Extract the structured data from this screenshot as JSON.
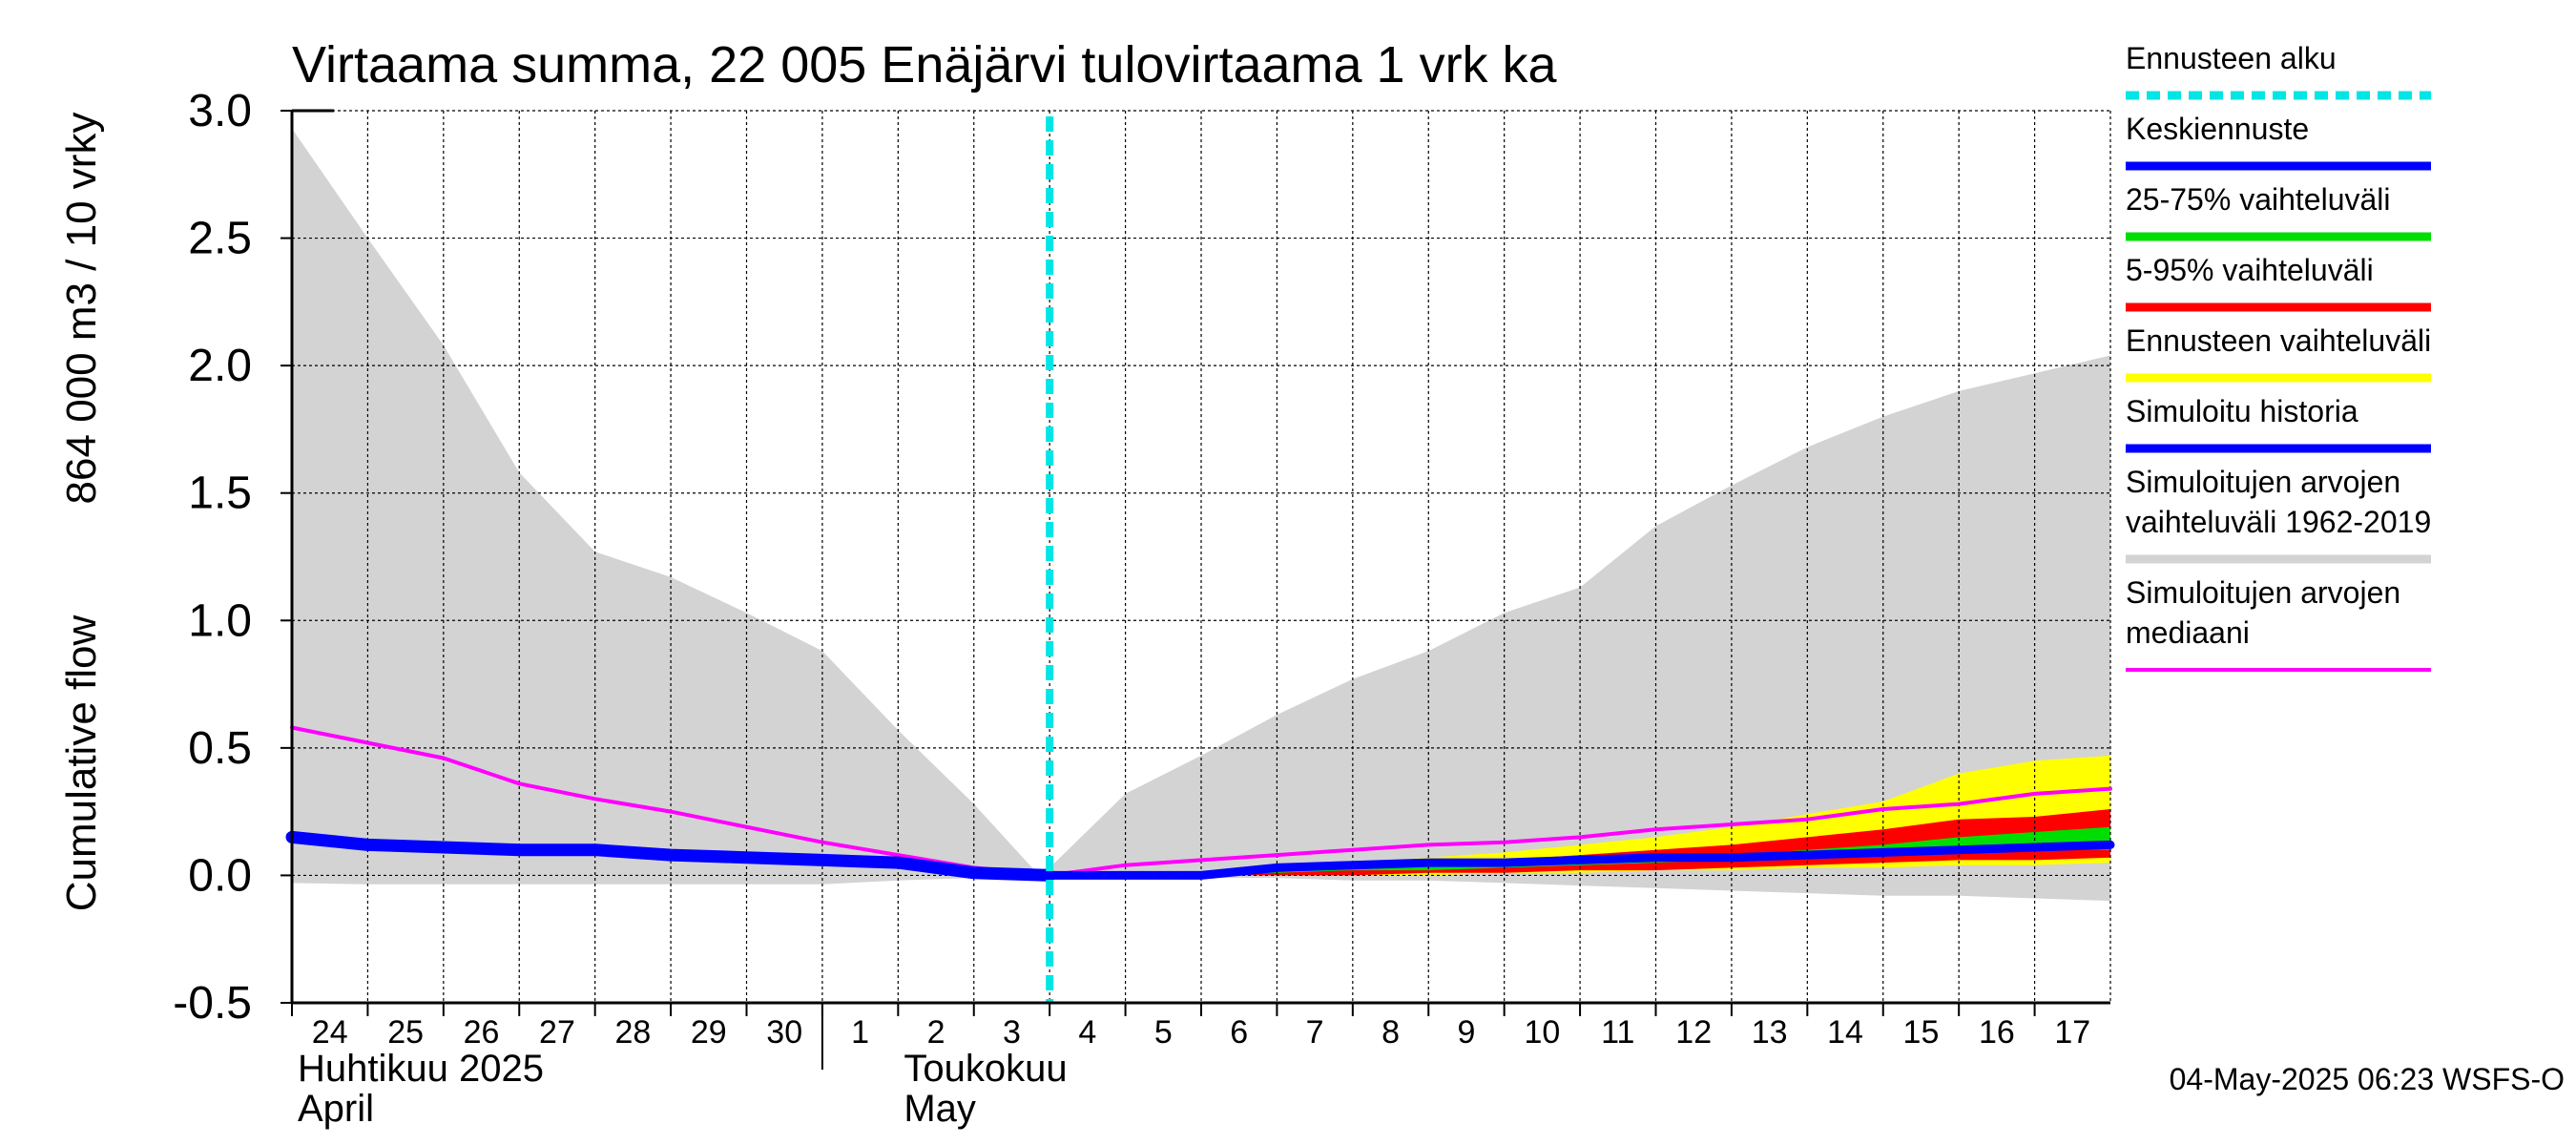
{
  "chart_data": {
    "type": "area",
    "title": "Virtaama summa, 22 005 Enäjärvi tulovirtaama 1 vrk ka",
    "ylabel_line1": "Cumulative flow",
    "ylabel_line2": "864 000 m3 / 10 vrky",
    "ylim": [
      -0.5,
      3.0
    ],
    "yticks": [
      -0.5,
      0.0,
      0.5,
      1.0,
      1.5,
      2.0,
      2.5,
      3.0
    ],
    "ytick_labels": [
      "-0.5",
      "0.0",
      "0.5",
      "1.0",
      "1.5",
      "2.0",
      "2.5",
      "3.0"
    ],
    "xlim": [
      0,
      24
    ],
    "x_tick_labels": [
      "24",
      "25",
      "26",
      "27",
      "28",
      "29",
      "30",
      "1",
      "2",
      "3",
      "4",
      "5",
      "6",
      "7",
      "8",
      "9",
      "10",
      "11",
      "12",
      "13",
      "14",
      "15",
      "16",
      "17"
    ],
    "month_labels": [
      {
        "line1": "Huhtikuu  2025",
        "line2": "April",
        "x": 0
      },
      {
        "line1": "Toukokuu",
        "line2": "May",
        "x": 8
      }
    ],
    "month_separator_x": 7,
    "forecast_start_x": 10,
    "grid": true,
    "series": [
      {
        "name": "Simuloitujen arvojen vaihteluväli 1962-2019",
        "kind": "band",
        "color": "#d3d3d3",
        "x": [
          0,
          1,
          2,
          3,
          4,
          5,
          6,
          7,
          8,
          9,
          9.8,
          10,
          11,
          12,
          13,
          14,
          15,
          16,
          17,
          18,
          19,
          20,
          21,
          22,
          23,
          24
        ],
        "upper": [
          2.93,
          2.5,
          2.08,
          1.58,
          1.27,
          1.17,
          1.03,
          0.88,
          0.57,
          0.28,
          0.02,
          0.03,
          0.32,
          0.47,
          0.63,
          0.77,
          0.88,
          1.03,
          1.13,
          1.37,
          1.53,
          1.68,
          1.8,
          1.9,
          1.97,
          2.04
        ],
        "lower": [
          -0.03,
          -0.035,
          -0.035,
          -0.035,
          -0.035,
          -0.035,
          -0.035,
          -0.035,
          -0.02,
          -0.01,
          0.0,
          0.0,
          -0.005,
          -0.01,
          -0.01,
          -0.02,
          -0.02,
          -0.03,
          -0.04,
          -0.05,
          -0.06,
          -0.07,
          -0.08,
          -0.08,
          -0.09,
          -0.1
        ]
      },
      {
        "name": "Ennusteen vaihteluväli",
        "kind": "band",
        "color": "#ffff00",
        "x": [
          10,
          12,
          13,
          14,
          15,
          16,
          17,
          18,
          19,
          20,
          21,
          22,
          23,
          24
        ],
        "upper": [
          0.0,
          0.01,
          0.03,
          0.05,
          0.07,
          0.09,
          0.12,
          0.15,
          0.19,
          0.24,
          0.29,
          0.4,
          0.45,
          0.47
        ],
        "lower": [
          0.0,
          0.0,
          0.0,
          0.0,
          0.0,
          0.01,
          0.01,
          0.02,
          0.02,
          0.03,
          0.03,
          0.04,
          0.04,
          0.05
        ]
      },
      {
        "name": "5-95% vaihteluväli",
        "kind": "band",
        "color": "#ff0000",
        "x": [
          10,
          12,
          13,
          14,
          15,
          16,
          17,
          18,
          19,
          20,
          21,
          22,
          23,
          24
        ],
        "upper": [
          0.0,
          0.01,
          0.02,
          0.04,
          0.05,
          0.06,
          0.08,
          0.1,
          0.12,
          0.15,
          0.18,
          0.22,
          0.23,
          0.26
        ],
        "lower": [
          0.0,
          0.0,
          0.0,
          0.0,
          0.01,
          0.01,
          0.02,
          0.02,
          0.03,
          0.04,
          0.05,
          0.06,
          0.06,
          0.07
        ]
      },
      {
        "name": "25-75% vaihteluväli",
        "kind": "band",
        "color": "#00dd00",
        "x": [
          10,
          12,
          13,
          14,
          15,
          16,
          17,
          18,
          19,
          20,
          21,
          22,
          23,
          24
        ],
        "upper": [
          0.0,
          0.01,
          0.02,
          0.03,
          0.04,
          0.05,
          0.06,
          0.07,
          0.08,
          0.1,
          0.12,
          0.15,
          0.17,
          0.19
        ],
        "lower": [
          0.0,
          0.0,
          0.01,
          0.02,
          0.02,
          0.03,
          0.04,
          0.05,
          0.06,
          0.07,
          0.08,
          0.09,
          0.1,
          0.1
        ]
      },
      {
        "name": "Simuloitujen arvojen mediaani",
        "kind": "line",
        "color": "#ff00ff",
        "width": 4,
        "x": [
          0,
          1,
          2,
          3,
          4,
          5,
          6,
          7,
          8,
          9,
          10,
          11,
          12,
          13,
          14,
          15,
          16,
          17,
          18,
          19,
          20,
          21,
          22,
          23,
          24
        ],
        "values": [
          0.58,
          0.52,
          0.46,
          0.36,
          0.3,
          0.25,
          0.19,
          0.13,
          0.08,
          0.03,
          0.0,
          0.04,
          0.06,
          0.08,
          0.1,
          0.12,
          0.13,
          0.15,
          0.18,
          0.2,
          0.22,
          0.26,
          0.28,
          0.32,
          0.34
        ]
      },
      {
        "name": "Simuloitu historia",
        "kind": "line",
        "color": "#0000ff",
        "width": 13,
        "x": [
          0,
          1,
          2,
          3,
          4,
          5,
          6,
          7,
          8,
          9,
          10
        ],
        "values": [
          0.15,
          0.12,
          0.11,
          0.1,
          0.1,
          0.08,
          0.07,
          0.06,
          0.05,
          0.01,
          0.0
        ]
      },
      {
        "name": "Keskiennuste",
        "kind": "line",
        "color": "#0000ff",
        "width": 9,
        "x": [
          10,
          11,
          12,
          13,
          14,
          15,
          16,
          17,
          18,
          19,
          20,
          21,
          22,
          23,
          24
        ],
        "values": [
          0.0,
          0.0,
          0.0,
          0.03,
          0.04,
          0.05,
          0.05,
          0.06,
          0.07,
          0.07,
          0.08,
          0.09,
          0.1,
          0.11,
          0.12
        ]
      },
      {
        "name": "Ennusteen alku",
        "kind": "vline",
        "color": "#00e5e5",
        "x": 10
      }
    ]
  },
  "legend": [
    {
      "label_lines": [
        "Ennusteen alku"
      ],
      "color": "#00e5e5",
      "style": "dashed"
    },
    {
      "label_lines": [
        "Keskiennuste"
      ],
      "color": "#0000ff",
      "style": "solid"
    },
    {
      "label_lines": [
        "25-75% vaihteluväli"
      ],
      "color": "#00dd00",
      "style": "solid"
    },
    {
      "label_lines": [
        "5-95% vaihteluväli"
      ],
      "color": "#ff0000",
      "style": "solid"
    },
    {
      "label_lines": [
        "Ennusteen vaihteluväli"
      ],
      "color": "#ffff00",
      "style": "solid"
    },
    {
      "label_lines": [
        "Simuloitu historia"
      ],
      "color": "#0000ff",
      "style": "solid"
    },
    {
      "label_lines": [
        "Simuloitujen arvojen",
        "vaihteluväli 1962-2019"
      ],
      "color": "#d3d3d3",
      "style": "solid"
    },
    {
      "label_lines": [
        "Simuloitujen arvojen",
        "mediaani"
      ],
      "color": "#ff00ff",
      "style": "thin"
    }
  ],
  "timestamp": "04-May-2025 06:23 WSFS-O"
}
